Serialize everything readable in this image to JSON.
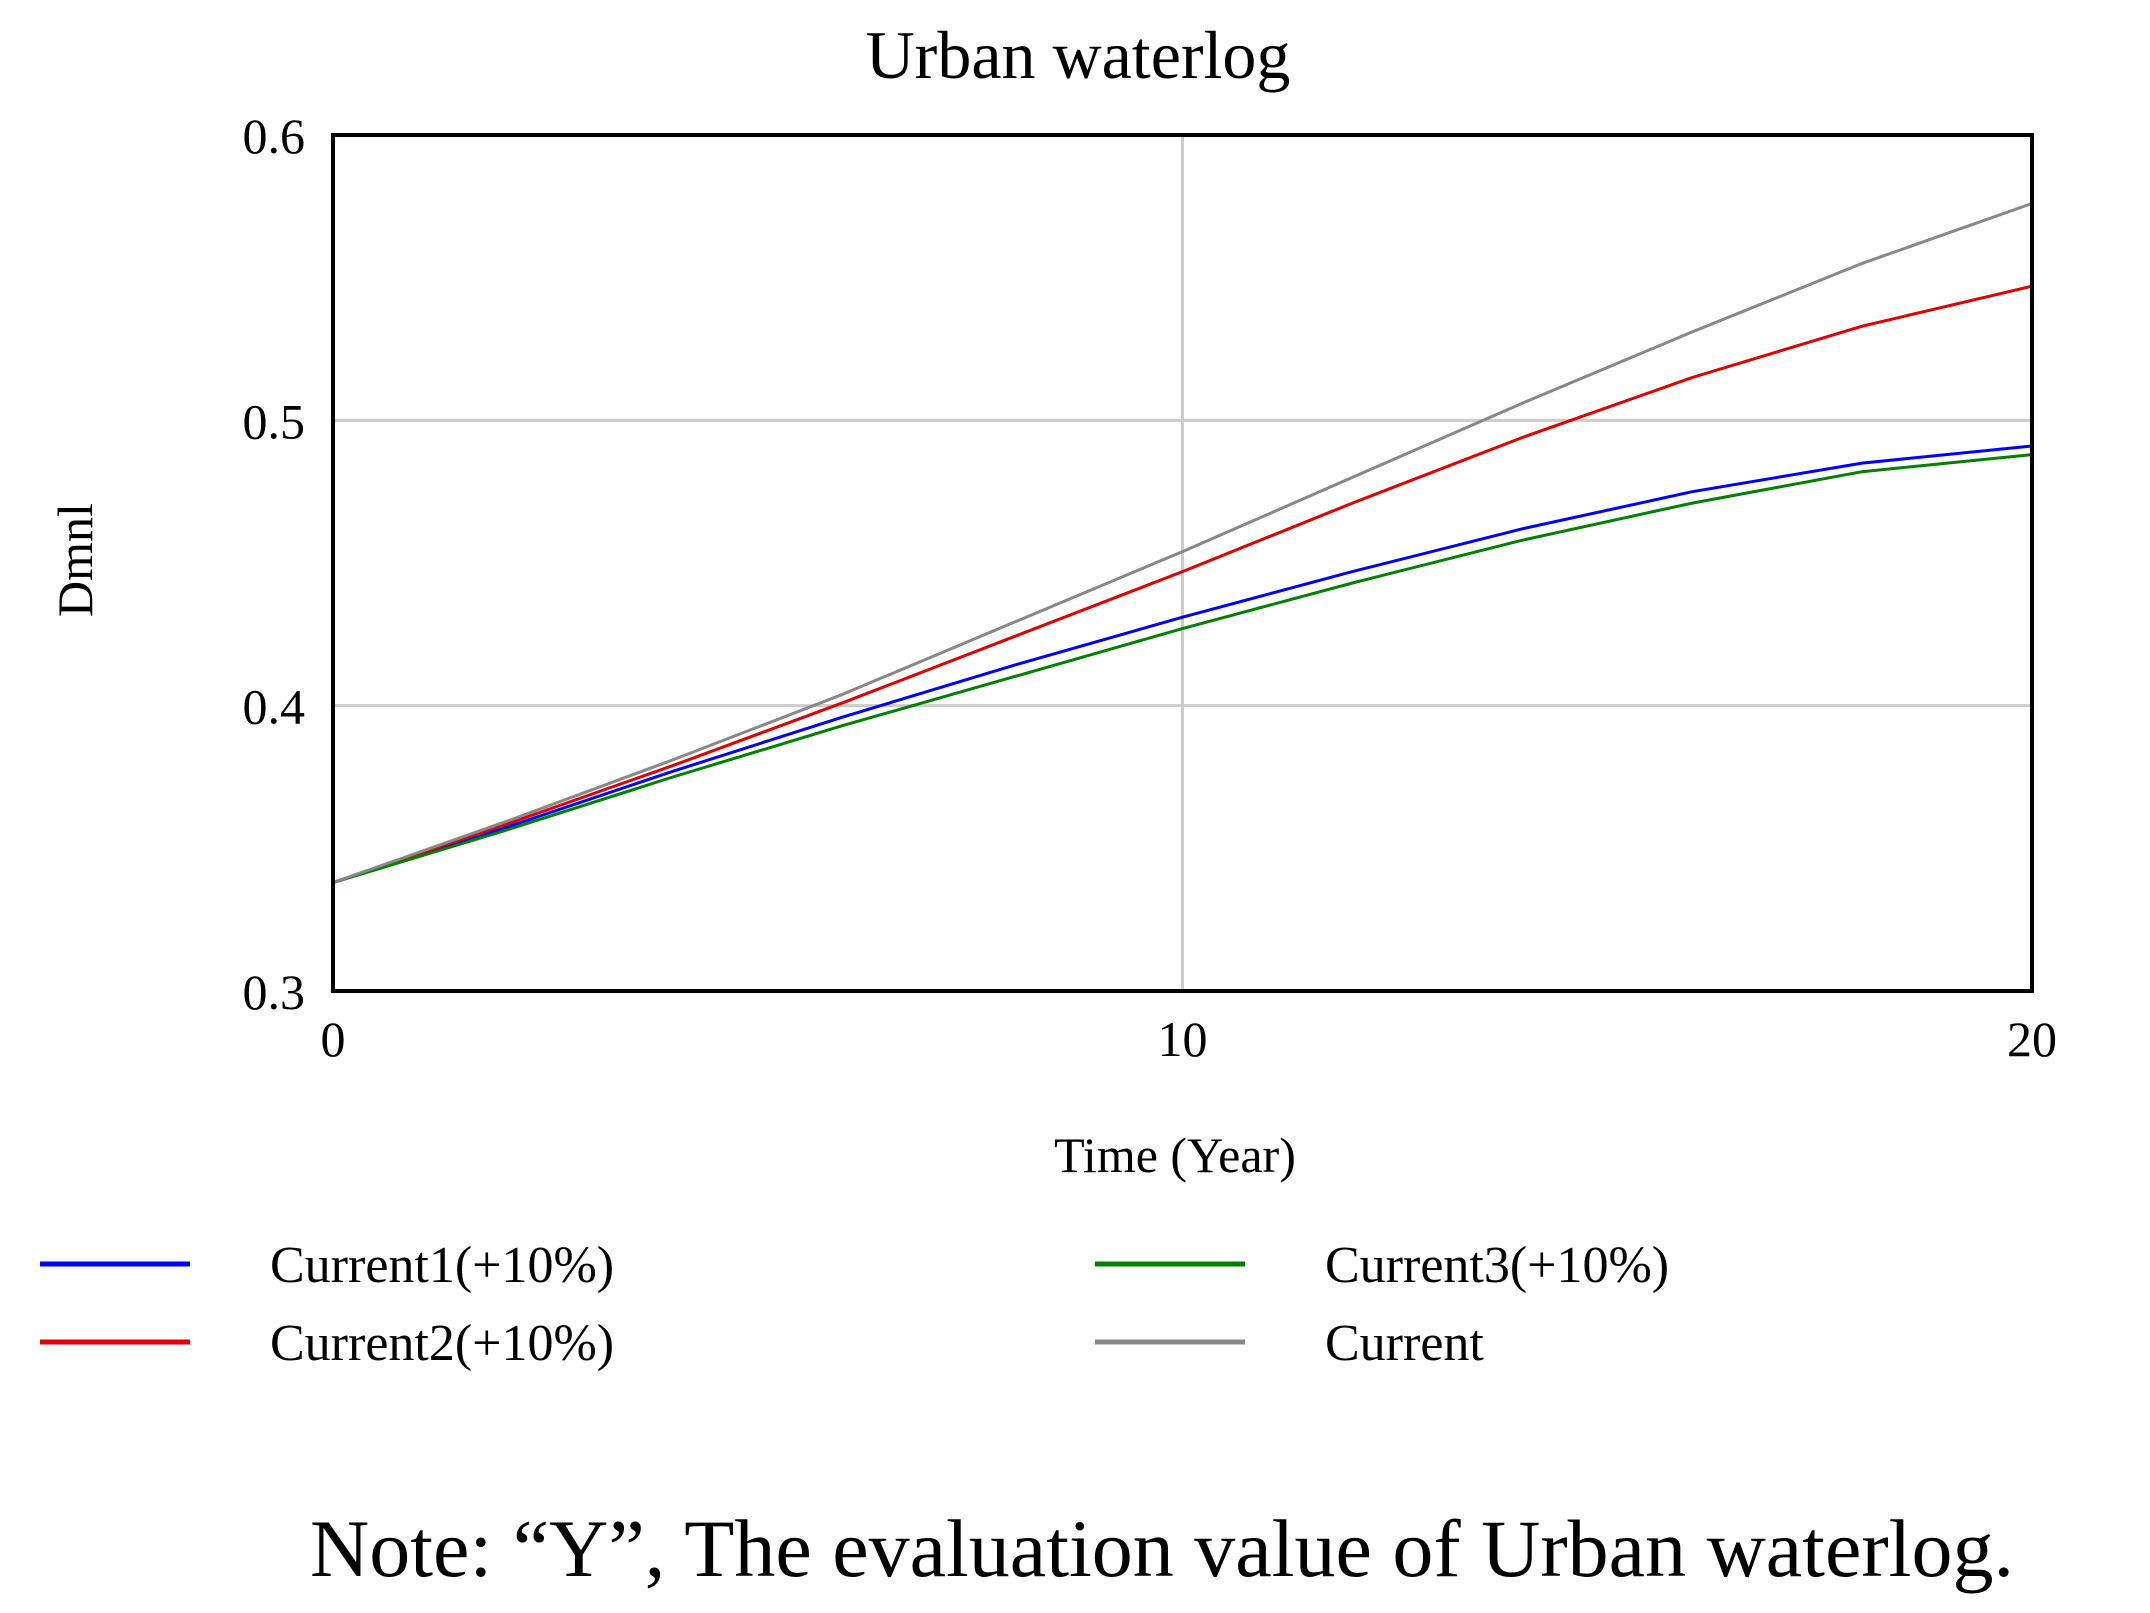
{
  "chart_data": {
    "type": "line",
    "title": "Urban waterlog",
    "xlabel": "Time (Year)",
    "ylabel": "Dmnl",
    "xlim": [
      0,
      20
    ],
    "ylim": [
      0.3,
      0.6
    ],
    "x_ticks": [
      "0",
      "10",
      "20"
    ],
    "y_ticks": [
      "0.6",
      "0.5",
      "0.4",
      "0.3"
    ],
    "x_tick_values": [
      0,
      10,
      20
    ],
    "y_tick_values": [
      0.6,
      0.5,
      0.4,
      0.3
    ],
    "grid": true,
    "legend_position": "bottom",
    "x": [
      0,
      2,
      4,
      6,
      8,
      10,
      12,
      14,
      16,
      18,
      20
    ],
    "series": [
      {
        "name": "Current1(+10%)",
        "color": "#0000ff",
        "values": [
          0.338,
          0.357,
          0.377,
          0.396,
          0.414,
          0.431,
          0.447,
          0.462,
          0.475,
          0.485,
          0.491
        ]
      },
      {
        "name": "Current2(+10%)",
        "color": "#e00000",
        "values": [
          0.338,
          0.358,
          0.379,
          0.401,
          0.424,
          0.447,
          0.471,
          0.494,
          0.515,
          0.533,
          0.547
        ]
      },
      {
        "name": "Current3(+10%)",
        "color": "#008000",
        "values": [
          0.338,
          0.356,
          0.375,
          0.393,
          0.41,
          0.427,
          0.443,
          0.458,
          0.471,
          0.482,
          0.488
        ]
      },
      {
        "name": "Current",
        "color": "#888888",
        "values": [
          0.338,
          0.359,
          0.381,
          0.404,
          0.429,
          0.454,
          0.48,
          0.506,
          0.531,
          0.555,
          0.576
        ]
      }
    ]
  },
  "note": "Note: “Y”, The evaluation value of Urban waterlog."
}
